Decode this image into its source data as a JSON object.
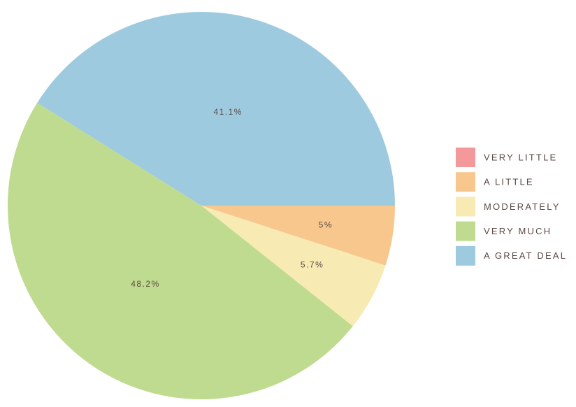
{
  "chart_data": {
    "type": "pie",
    "categories": [
      "VERY LITTLE",
      "A LITTLE",
      "MODERATELY",
      "VERY MUCH",
      "A GREAT DEAL"
    ],
    "values": [
      0,
      5,
      5.7,
      48.2,
      41.1
    ],
    "value_labels": [
      null,
      "5%",
      "5.7%",
      "48.2%",
      "41.1%"
    ],
    "colors": [
      "#f4999b",
      "#f7c78d",
      "#f7eab3",
      "#bfdb8f",
      "#9ecae0"
    ],
    "legend": "right"
  }
}
